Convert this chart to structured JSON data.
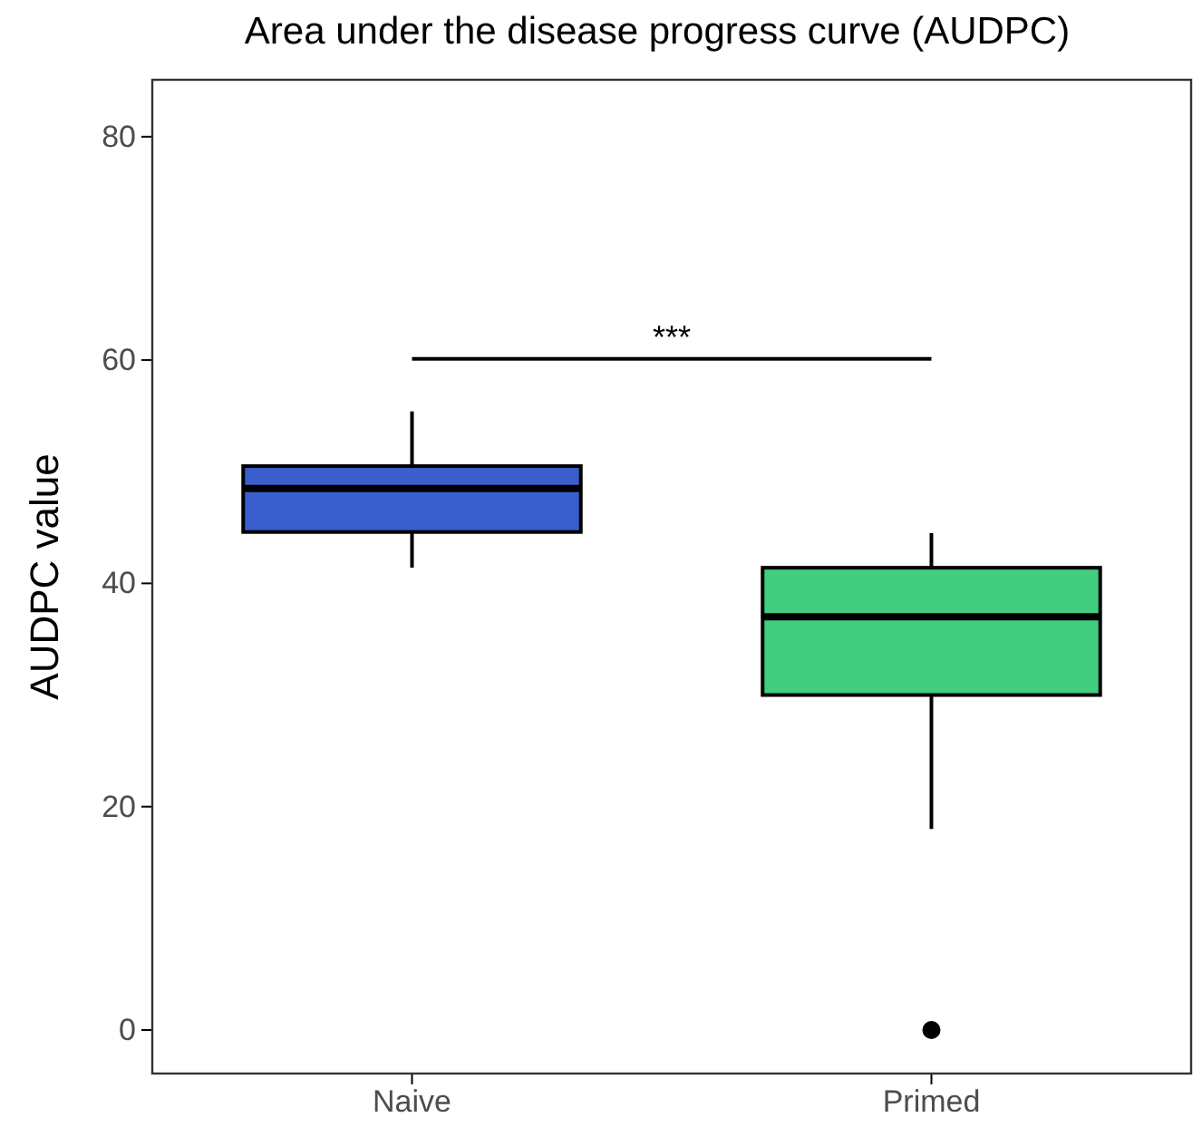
{
  "chart_data": {
    "type": "box",
    "title": "Area under the disease progress curve (AUDPC)",
    "ylabel": "AUDPC value",
    "categories": [
      "Naive",
      "Primed"
    ],
    "colors": [
      "#3a5fcd",
      "#43cd80"
    ],
    "boxes": [
      {
        "low": 41.4,
        "q1": 44.6,
        "median": 48.5,
        "q3": 50.5,
        "high": 55.4
      },
      {
        "low": 18,
        "q1": 30,
        "median": 37,
        "q3": 41.4,
        "high": 44.5,
        "outliers": [
          0
        ]
      }
    ],
    "ylim": [
      -3.9,
      85.1
    ],
    "yticks": [
      0,
      20,
      40,
      60,
      80
    ],
    "grid": false,
    "annotations": [
      "***"
    ]
  }
}
